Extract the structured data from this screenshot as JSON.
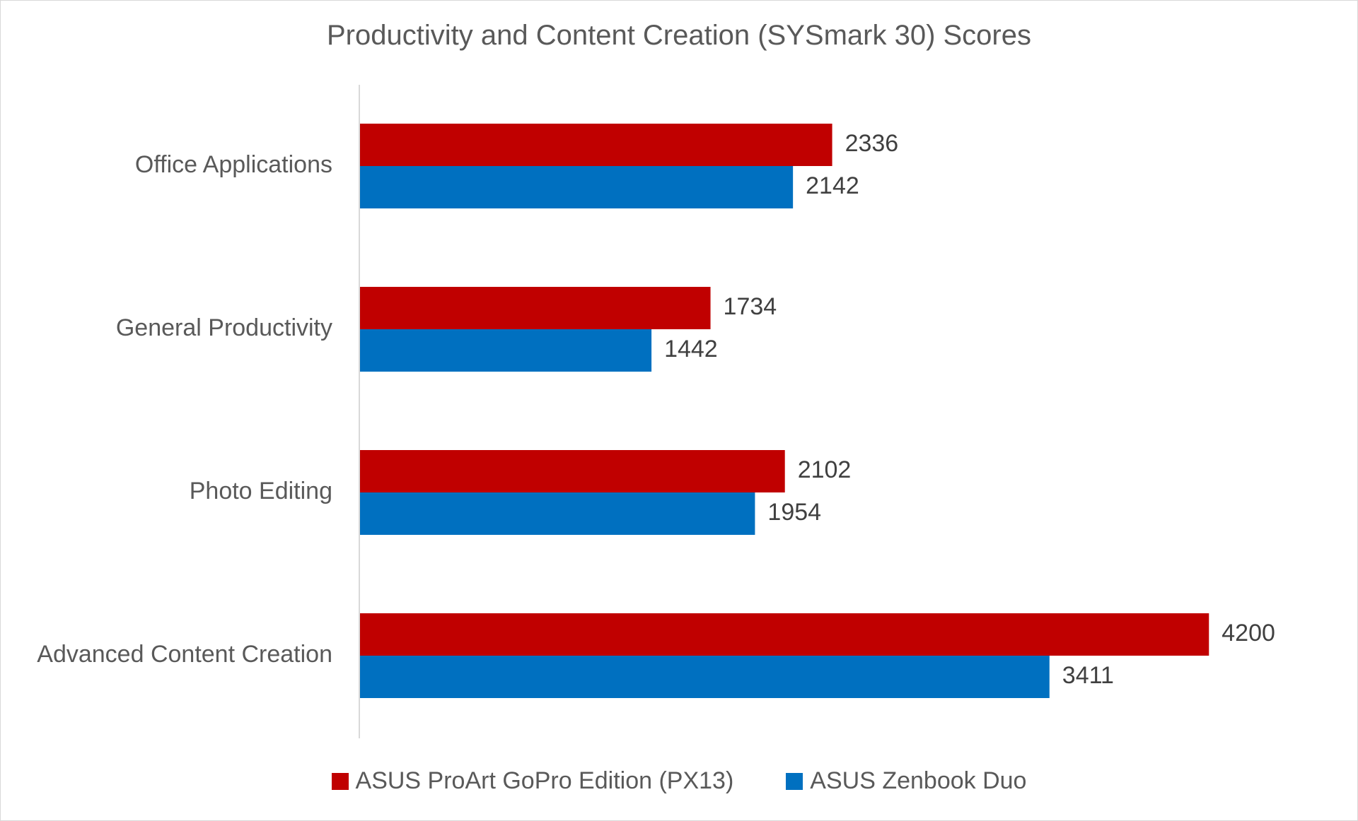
{
  "chart_data": {
    "type": "bar",
    "orientation": "horizontal",
    "title": "Productivity and Content Creation (SYSmark 30) Scores",
    "categories": [
      "Office Applications",
      "General Productivity",
      "Photo Editing",
      "Advanced Content Creation"
    ],
    "series": [
      {
        "name": "ASUS ProArt GoPro Edition (PX13)",
        "color": "#C00000",
        "values": [
          2336,
          1734,
          2102,
          4200
        ]
      },
      {
        "name": "ASUS Zenbook Duo",
        "color": "#0070C0",
        "values": [
          2142,
          1442,
          1954,
          3411
        ]
      }
    ],
    "xlim": [
      0,
      4500
    ],
    "grid": false,
    "value_labels": true,
    "legend_position": "bottom",
    "xlabel": "",
    "ylabel": ""
  }
}
